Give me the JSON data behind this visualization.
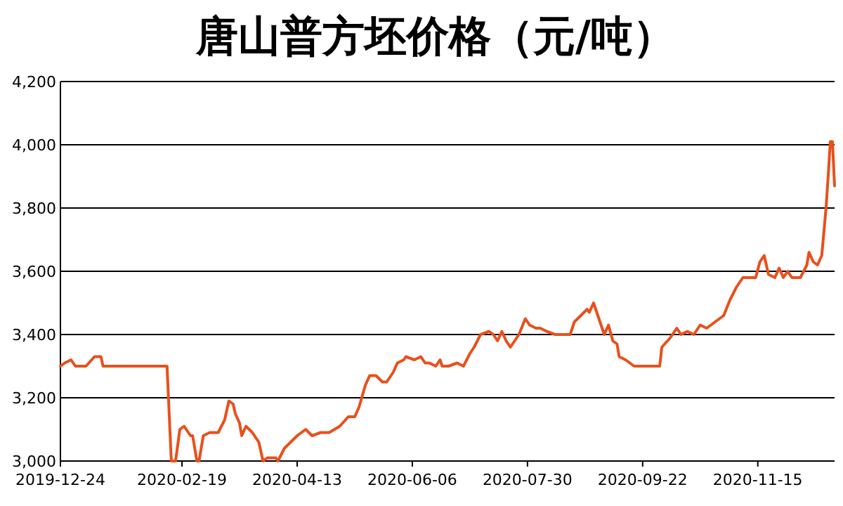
{
  "chart_data": {
    "type": "line",
    "title": "唐山普方坯价格（元/吨）",
    "grid": "y",
    "color": "#e8501c",
    "x": [
      "2019-12-24",
      "2019-12-26",
      "2019-12-29",
      "2019-12-31",
      "2020-01-05",
      "2020-01-09",
      "2020-01-12",
      "2020-01-13",
      "2020-02-12",
      "2020-02-14",
      "2020-02-16",
      "2020-02-18",
      "2020-02-20",
      "2020-02-23",
      "2020-02-24",
      "2020-02-26",
      "2020-02-27",
      "2020-02-29",
      "2020-03-03",
      "2020-03-07",
      "2020-03-10",
      "2020-03-12",
      "2020-03-14",
      "2020-03-15",
      "2020-03-17",
      "2020-03-18",
      "2020-03-20",
      "2020-03-23",
      "2020-03-26",
      "2020-03-28",
      "2020-03-30",
      "2020-04-03",
      "2020-04-04",
      "2020-04-07",
      "2020-04-10",
      "2020-04-13",
      "2020-04-17",
      "2020-04-20",
      "2020-04-24",
      "2020-04-28",
      "2020-05-03",
      "2020-05-07",
      "2020-05-10",
      "2020-05-12",
      "2020-05-15",
      "2020-05-17",
      "2020-05-20",
      "2020-05-23",
      "2020-05-25",
      "2020-05-28",
      "2020-05-30",
      "2020-06-02",
      "2020-06-03",
      "2020-06-07",
      "2020-06-10",
      "2020-06-12",
      "2020-06-14",
      "2020-06-17",
      "2020-06-19",
      "2020-06-20",
      "2020-06-23",
      "2020-06-27",
      "2020-06-30",
      "2020-07-03",
      "2020-07-05",
      "2020-07-08",
      "2020-07-12",
      "2020-07-14",
      "2020-07-16",
      "2020-07-18",
      "2020-07-20",
      "2020-07-22",
      "2020-07-26",
      "2020-07-29",
      "2020-07-31",
      "2020-08-03",
      "2020-08-05",
      "2020-08-08",
      "2020-08-12",
      "2020-08-16",
      "2020-08-19",
      "2020-08-21",
      "2020-08-24",
      "2020-08-27",
      "2020-08-28",
      "2020-08-30",
      "2020-09-01",
      "2020-09-04",
      "2020-09-06",
      "2020-09-08",
      "2020-09-10",
      "2020-09-11",
      "2020-09-14",
      "2020-09-18",
      "2020-09-21",
      "2020-09-30",
      "2020-10-01",
      "2020-10-05",
      "2020-10-08",
      "2020-10-10",
      "2020-10-13",
      "2020-10-16",
      "2020-10-19",
      "2020-10-22",
      "2020-10-26",
      "2020-10-30",
      "2020-11-02",
      "2020-11-05",
      "2020-11-08",
      "2020-11-12",
      "2020-11-14",
      "2020-11-16",
      "2020-11-18",
      "2020-11-20",
      "2020-11-23",
      "2020-11-25",
      "2020-11-27",
      "2020-11-29",
      "2020-12-01",
      "2020-12-05",
      "2020-12-08",
      "2020-12-09",
      "2020-12-11",
      "2020-12-13",
      "2020-12-15",
      "2020-12-17",
      "2020-12-18",
      "2020-12-19",
      "2020-12-20",
      "2020-12-21"
    ],
    "values": [
      3300,
      3310,
      3320,
      3300,
      3300,
      3330,
      3330,
      3300,
      3300,
      3000,
      3000,
      3100,
      3110,
      3080,
      3080,
      3000,
      3000,
      3080,
      3090,
      3090,
      3130,
      3190,
      3180,
      3150,
      3120,
      3080,
      3110,
      3090,
      3060,
      3000,
      3010,
      3010,
      3000,
      3040,
      3060,
      3080,
      3100,
      3080,
      3090,
      3090,
      3110,
      3140,
      3140,
      3170,
      3240,
      3270,
      3270,
      3250,
      3250,
      3280,
      3310,
      3320,
      3330,
      3320,
      3330,
      3310,
      3310,
      3300,
      3320,
      3300,
      3300,
      3310,
      3300,
      3340,
      3360,
      3400,
      3410,
      3400,
      3380,
      3410,
      3380,
      3360,
      3400,
      3450,
      3430,
      3420,
      3420,
      3410,
      3400,
      3400,
      3400,
      3440,
      3460,
      3480,
      3470,
      3500,
      3460,
      3400,
      3430,
      3380,
      3370,
      3330,
      3320,
      3300,
      3300,
      3300,
      3360,
      3390,
      3420,
      3400,
      3410,
      3400,
      3430,
      3420,
      3440,
      3460,
      3510,
      3550,
      3580,
      3580,
      3580,
      3630,
      3650,
      3590,
      3580,
      3610,
      3580,
      3600,
      3580,
      3580,
      3620,
      3660,
      3630,
      3620,
      3650,
      3800,
      3900,
      4010,
      4010,
      3870
    ],
    "xlim": [
      "2019-12-24",
      "2020-12-21"
    ],
    "xticks": [
      {
        "value": "2019-12-24",
        "label": "2019-12-24"
      },
      {
        "value": "2020-02-19",
        "label": "2020-02-19"
      },
      {
        "value": "2020-04-13",
        "label": "2020-04-13"
      },
      {
        "value": "2020-06-06",
        "label": "2020-06-06"
      },
      {
        "value": "2020-07-30",
        "label": "2020-07-30"
      },
      {
        "value": "2020-09-22",
        "label": "2020-09-22"
      },
      {
        "value": "2020-11-15",
        "label": "2020-11-15"
      }
    ],
    "ylim": [
      3000,
      4200
    ],
    "yticks": [
      {
        "value": 3000,
        "label": "3,000"
      },
      {
        "value": 3200,
        "label": "3,200"
      },
      {
        "value": 3400,
        "label": "3,400"
      },
      {
        "value": 3600,
        "label": "3,600"
      },
      {
        "value": 3800,
        "label": "3,800"
      },
      {
        "value": 4000,
        "label": "4,000"
      },
      {
        "value": 4200,
        "label": "4,200"
      }
    ]
  }
}
